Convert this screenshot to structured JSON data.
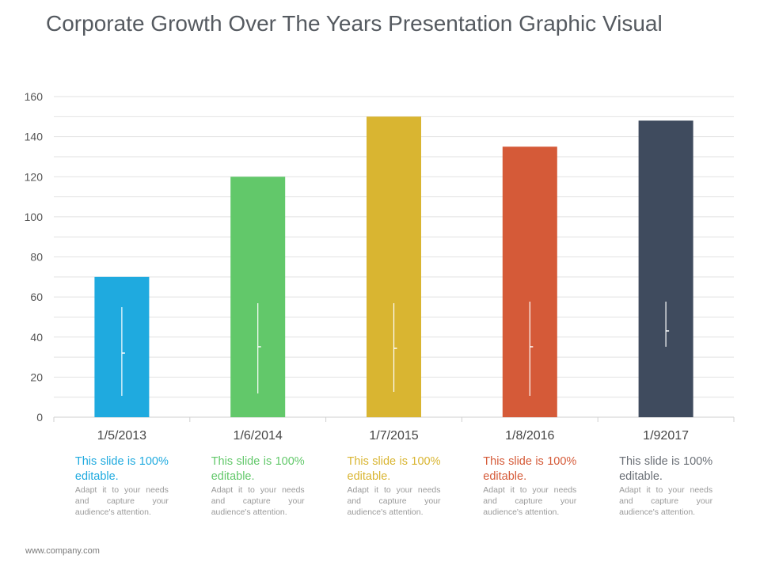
{
  "slide": {
    "title": "Corporate Growth Over The Years Presentation Graphic Visual",
    "footer": "www.company.com"
  },
  "chart_data": {
    "type": "bar",
    "title": "",
    "xlabel": "",
    "ylabel": "",
    "categories": [
      "1/5/2013",
      "1/6/2014",
      "1/7/2015",
      "1/8/2016",
      "1/92017"
    ],
    "values": [
      70,
      120,
      150,
      135,
      148
    ],
    "colors": [
      "#1faadf",
      "#62c86a",
      "#d9b531",
      "#d55a38",
      "#3f4b5e"
    ],
    "ylim": [
      0,
      160
    ],
    "yticks": [
      0,
      20,
      40,
      60,
      80,
      100,
      120,
      140,
      160
    ],
    "grid": true
  },
  "captions": [
    {
      "main": "This slide is 100% editable.",
      "sub": "Adapt it to your needs and capture your audience's attention.",
      "color": "#1faadf"
    },
    {
      "main": "This slide is 100% editable.",
      "sub": "Adapt it to your needs and capture your audience's attention.",
      "color": "#62c86a"
    },
    {
      "main": "This slide is 100% editable.",
      "sub": "Adapt it to your needs and capture your audience's attention.",
      "color": "#d9b531"
    },
    {
      "main": "This slide is 100% editable.",
      "sub": "Adapt it to your needs and capture your audience's attention.",
      "color": "#d55a38"
    },
    {
      "main": "This slide is 100% editable.",
      "sub": "Adapt it to your needs and capture your audience's attention.",
      "color": "#6a6f76"
    }
  ]
}
